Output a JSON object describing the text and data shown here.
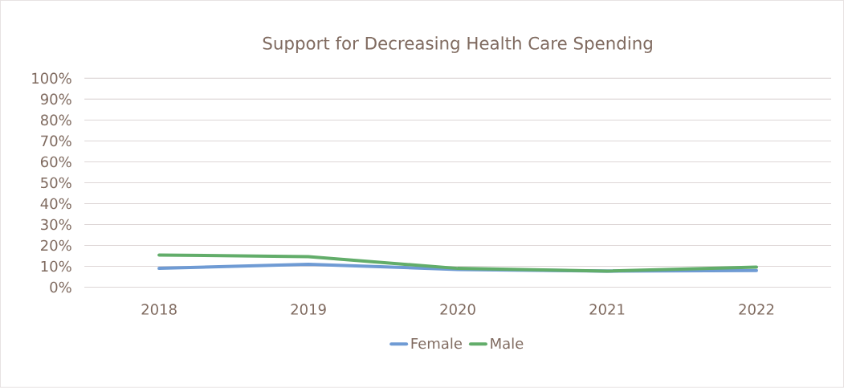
{
  "chart_data": {
    "type": "line",
    "title": "Support for Decreasing Health Care Spending",
    "categories": [
      "2018",
      "2019",
      "2020",
      "2021",
      "2022"
    ],
    "series": [
      {
        "name": "Female",
        "color": "#6f9bd4",
        "values": [
          9,
          11,
          8.5,
          7.7,
          8
        ]
      },
      {
        "name": "Male",
        "color": "#62ad6a",
        "values": [
          15.4,
          14.6,
          9,
          7.7,
          9.6
        ]
      }
    ],
    "ylim": [
      0,
      100
    ],
    "yticks": [
      {
        "value": 0,
        "label": "0%"
      },
      {
        "value": 10,
        "label": "10%"
      },
      {
        "value": 20,
        "label": "20%"
      },
      {
        "value": 30,
        "label": "30%"
      },
      {
        "value": 40,
        "label": "40%"
      },
      {
        "value": 50,
        "label": "50%"
      },
      {
        "value": 60,
        "label": "60%"
      },
      {
        "value": 70,
        "label": "70%"
      },
      {
        "value": 80,
        "label": "80%"
      },
      {
        "value": 90,
        "label": "90%"
      },
      {
        "value": 100,
        "label": "100%"
      }
    ],
    "grid": "y",
    "legend": "bottom",
    "marker": "none",
    "line_style": "solid"
  }
}
